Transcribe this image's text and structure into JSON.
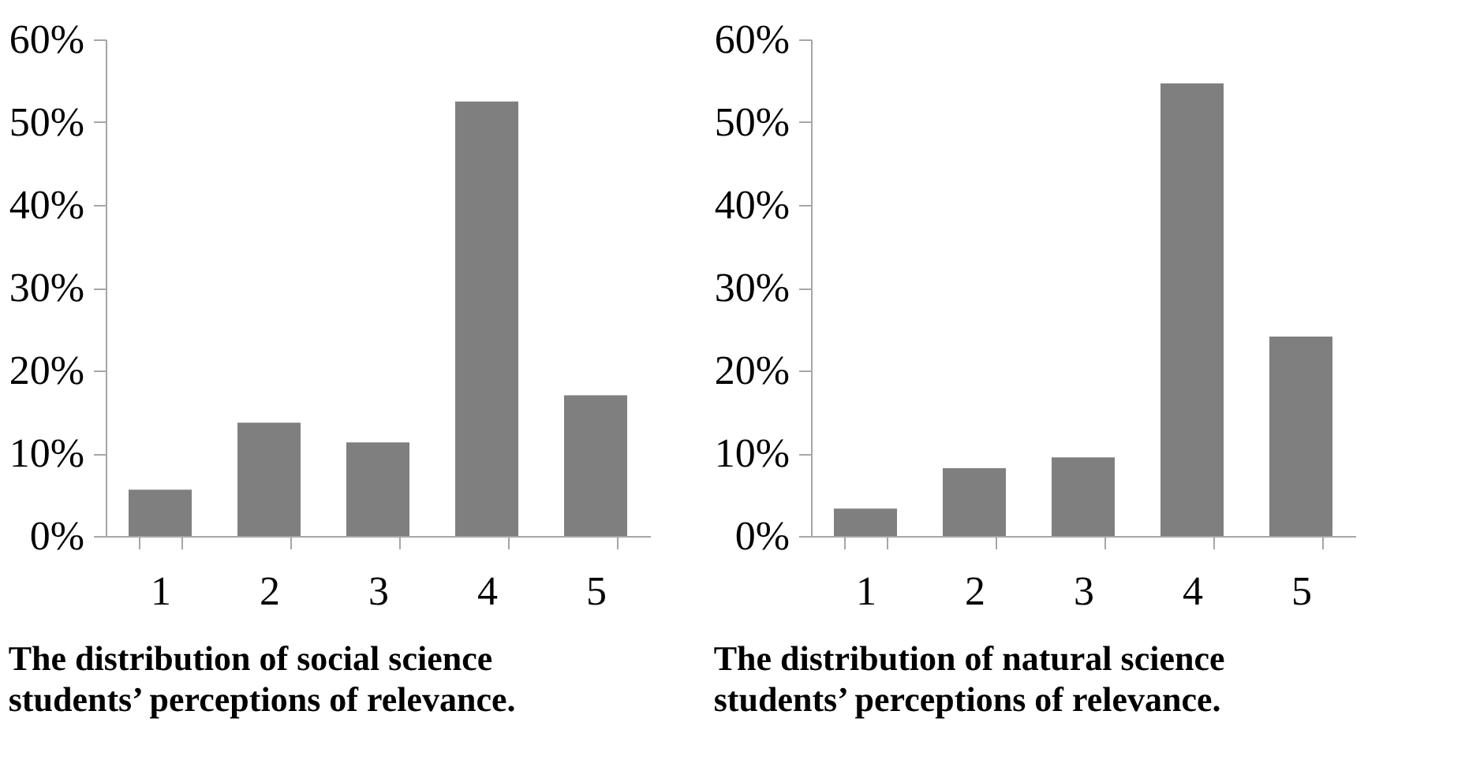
{
  "chart_data": [
    {
      "type": "bar",
      "title": "The distribution of social science\nstudents’ perceptions of relevance.",
      "categories": [
        "1",
        "2",
        "3",
        "4",
        "5"
      ],
      "values": [
        5.6,
        13.7,
        11.3,
        52.5,
        17.0
      ],
      "color": "#7f7f7f",
      "ylim": [
        0,
        60
      ],
      "yticks": [
        {
          "value": 0,
          "label": "0%"
        },
        {
          "value": 10,
          "label": "10%"
        },
        {
          "value": 20,
          "label": "20%"
        },
        {
          "value": 30,
          "label": "30%"
        },
        {
          "value": 40,
          "label": "40%"
        },
        {
          "value": 50,
          "label": "50%"
        },
        {
          "value": 60,
          "label": "60%"
        }
      ],
      "grid": false,
      "legend": false
    },
    {
      "type": "bar",
      "title": "The distribution of natural science\nstudents’ perceptions of relevance.",
      "categories": [
        "1",
        "2",
        "3",
        "4",
        "5"
      ],
      "values": [
        3.3,
        8.2,
        9.5,
        54.7,
        24.1
      ],
      "color": "#7f7f7f",
      "ylim": [
        0,
        60
      ],
      "yticks": [
        {
          "value": 0,
          "label": "0%"
        },
        {
          "value": 10,
          "label": "10%"
        },
        {
          "value": 20,
          "label": "20%"
        },
        {
          "value": 30,
          "label": "30%"
        },
        {
          "value": 40,
          "label": "40%"
        },
        {
          "value": 50,
          "label": "50%"
        },
        {
          "value": 60,
          "label": "60%"
        }
      ],
      "grid": false,
      "legend": false
    }
  ]
}
